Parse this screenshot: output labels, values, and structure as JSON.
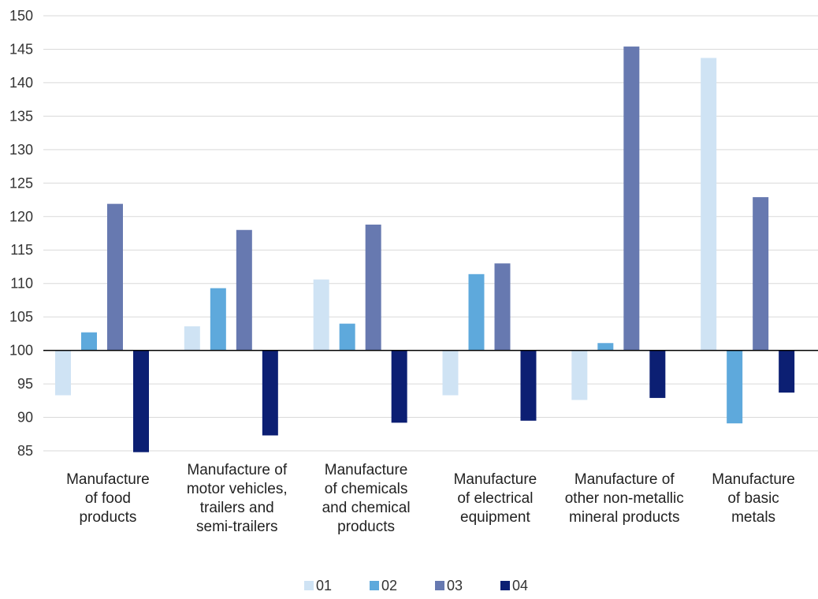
{
  "chart_data": {
    "type": "bar",
    "baseline": 100,
    "ylim": [
      85,
      150
    ],
    "yticks": [
      85,
      90,
      95,
      100,
      105,
      110,
      115,
      120,
      125,
      130,
      135,
      140,
      145,
      150
    ],
    "grid": true,
    "legend_position": "bottom",
    "categories": [
      [
        "Manufacture",
        "of food",
        "products"
      ],
      [
        "Manufacture of",
        "motor vehicles,",
        "trailers and",
        "semi-trailers"
      ],
      [
        "Manufacture",
        "of chemicals",
        "and chemical",
        "products"
      ],
      [
        "Manufacture",
        "of electrical",
        "equipment"
      ],
      [
        "Manufacture of",
        "other non-metallic",
        "mineral products"
      ],
      [
        "Manufacture",
        "of basic",
        "metals"
      ]
    ],
    "series": [
      {
        "name": "01",
        "color": "#cfe3f4",
        "values": [
          93.3,
          103.6,
          110.6,
          93.3,
          92.6,
          143.7
        ]
      },
      {
        "name": "02",
        "color": "#5ea9dc",
        "values": [
          102.7,
          109.3,
          104.0,
          111.4,
          101.1,
          89.1
        ]
      },
      {
        "name": "03",
        "color": "#6779b0",
        "values": [
          121.9,
          118.0,
          118.8,
          113.0,
          145.4,
          122.9
        ]
      },
      {
        "name": "04",
        "color": "#0c1f73",
        "values": [
          84.8,
          87.3,
          89.2,
          89.5,
          92.9,
          93.7
        ]
      }
    ]
  }
}
